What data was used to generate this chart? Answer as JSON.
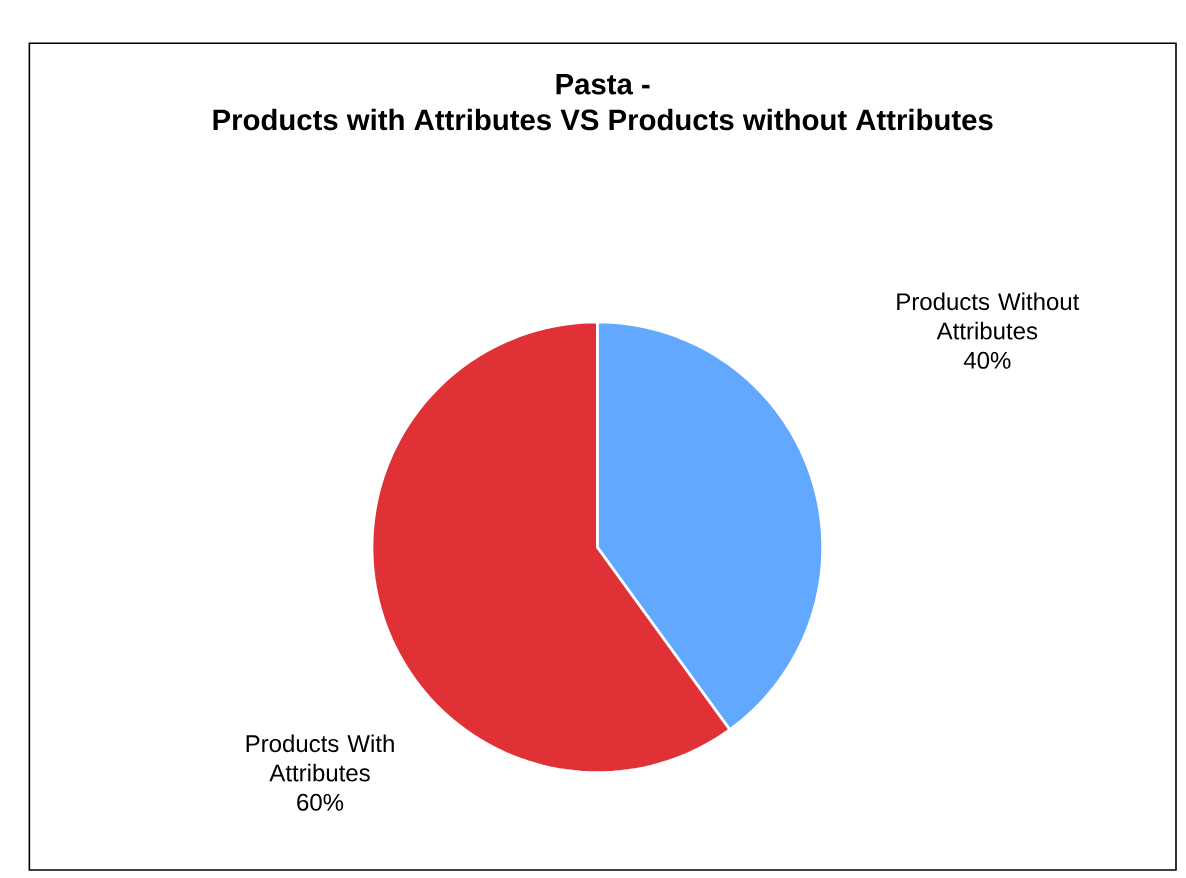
{
  "chart_data": {
    "type": "pie",
    "title": "Pasta -",
    "subtitle": "Products with Attributes VS Products without Attributes",
    "categories": [
      "Products Without Attributes",
      "Products With Attributes"
    ],
    "values": [
      40,
      60
    ],
    "colors": [
      "#62a8fe",
      "#e03236"
    ],
    "value_labels": [
      "40%",
      "60%"
    ]
  }
}
